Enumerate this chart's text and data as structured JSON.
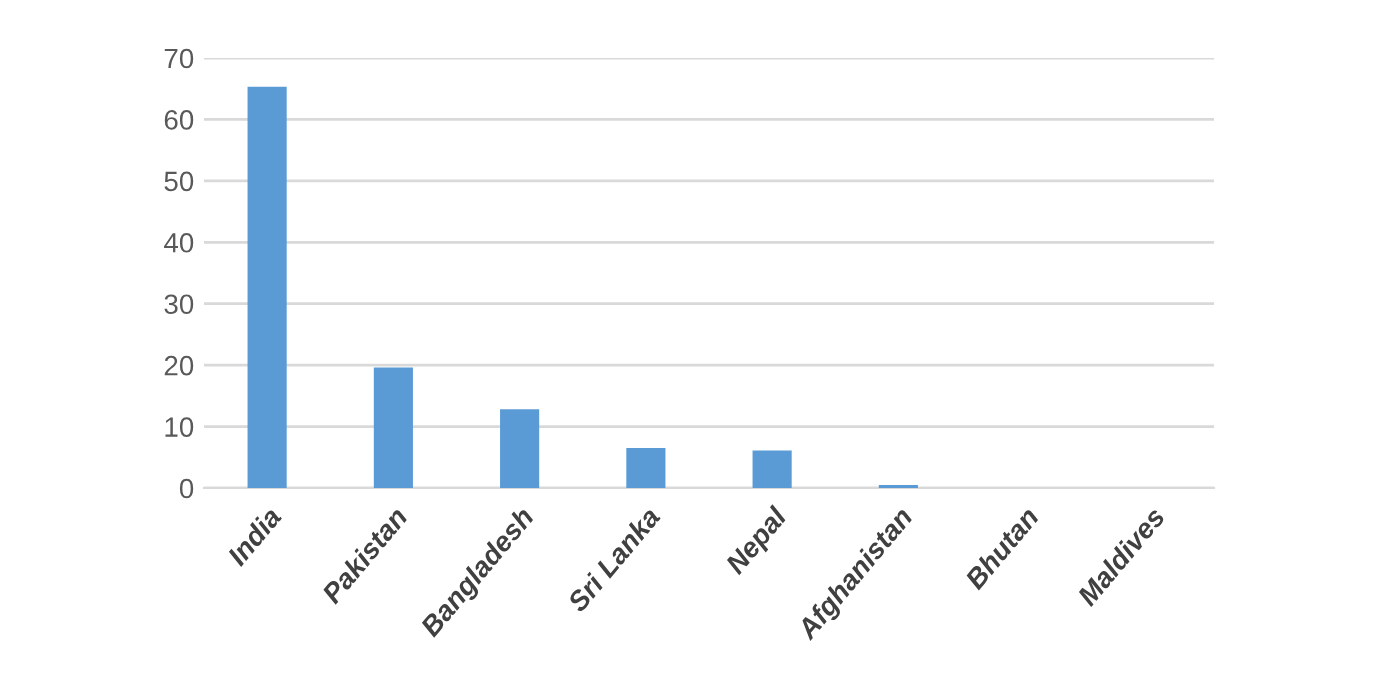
{
  "chart_data": {
    "type": "bar",
    "categories": [
      "India",
      "Pakistan",
      "Bangladesh",
      "Sri Lanka",
      "Nepal",
      "Afghanistan",
      "Bhutan",
      "Maldives"
    ],
    "values": [
      65.3,
      19.6,
      12.8,
      6.5,
      6.1,
      0.5,
      0,
      0
    ],
    "color": "#5b9bd5",
    "ylim": [
      0,
      70
    ],
    "yticks": [
      0,
      10,
      20,
      30,
      40,
      50,
      60,
      70
    ],
    "grid": "y",
    "legend": false
  }
}
